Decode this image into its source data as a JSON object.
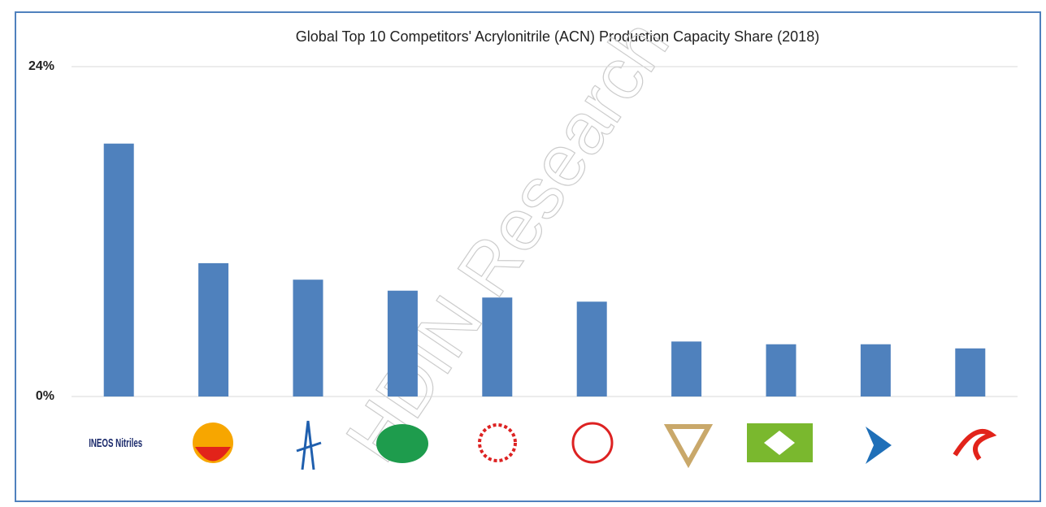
{
  "chart_data": {
    "type": "bar",
    "title": "Global Top 10 Competitors' Acrylonitrile (ACN) Production Capacity Share (2018)",
    "watermark": "HDIN Research",
    "categories": [
      "INEOS Nitriles",
      null,
      null,
      null,
      null,
      null,
      null,
      null,
      null,
      null
    ],
    "values": [
      18.4,
      9.7,
      8.5,
      7.7,
      7.2,
      6.9,
      4.0,
      3.8,
      3.8,
      3.5
    ],
    "color": "#4f81bd",
    "ylim": [
      0,
      24
    ],
    "yticks": [
      {
        "value": 0,
        "label": "0%"
      },
      {
        "value": 24,
        "label": "24%"
      }
    ],
    "grid": true
  }
}
